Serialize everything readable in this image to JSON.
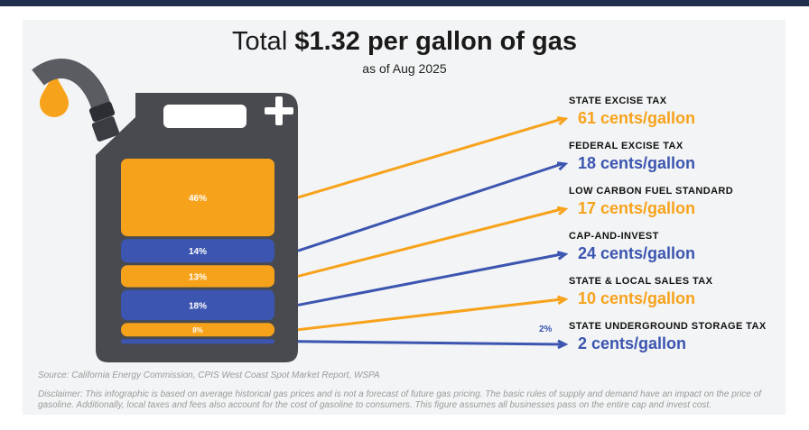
{
  "header": {
    "title_prefix": "Total",
    "title_bold": "$1.32 per gallon of gas",
    "subtitle": "as of Aug 2025"
  },
  "colors": {
    "orange": "#f7a21b",
    "blue": "#3b55b0",
    "can": "#484a4f",
    "dark": "#2c2e33"
  },
  "chart_data": {
    "type": "stacked-bar",
    "title": "Total $1.32 per gallon of gas",
    "subtitle": "as of Aug 2025",
    "unit": "cents/gallon",
    "segments": [
      {
        "name": "STATE EXCISE TAX",
        "value": 61,
        "percent": 46,
        "percent_label": "46%",
        "value_label": "61 cents/gallon",
        "color": "orange"
      },
      {
        "name": "FEDERAL EXCISE TAX",
        "value": 18,
        "percent": 14,
        "percent_label": "14%",
        "value_label": "18 cents/gallon",
        "color": "blue"
      },
      {
        "name": "LOW CARBON FUEL STANDARD",
        "value": 17,
        "percent": 13,
        "percent_label": "13%",
        "value_label": "17 cents/gallon",
        "color": "orange"
      },
      {
        "name": "CAP-AND-INVEST",
        "value": 24,
        "percent": 18,
        "percent_label": "18%",
        "value_label": "24 cents/gallon",
        "color": "blue"
      },
      {
        "name": "STATE & LOCAL SALES TAX",
        "value": 10,
        "percent": 8,
        "percent_label": "8%",
        "value_label": "10 cents/gallon",
        "color": "orange"
      },
      {
        "name": "STATE UNDERGROUND STORAGE TAX",
        "value": 2,
        "percent": 2,
        "percent_label": "2%",
        "value_label": "2 cents/gallon",
        "color": "blue"
      }
    ]
  },
  "footer": {
    "source": "Source: California Energy Commission, CPIS West Coast Spot Market Report, WSPA",
    "disclaimer": "Disclaimer: This infographic is based on average historical gas prices and is not a forecast of future gas pricing. The basic rules of supply and demand have an impact on the price of gasoline. Additionally, local taxes and fees also account for the cost of gasoline to consumers. This figure assumes all businesses pass on the entire cap and invest cost."
  }
}
